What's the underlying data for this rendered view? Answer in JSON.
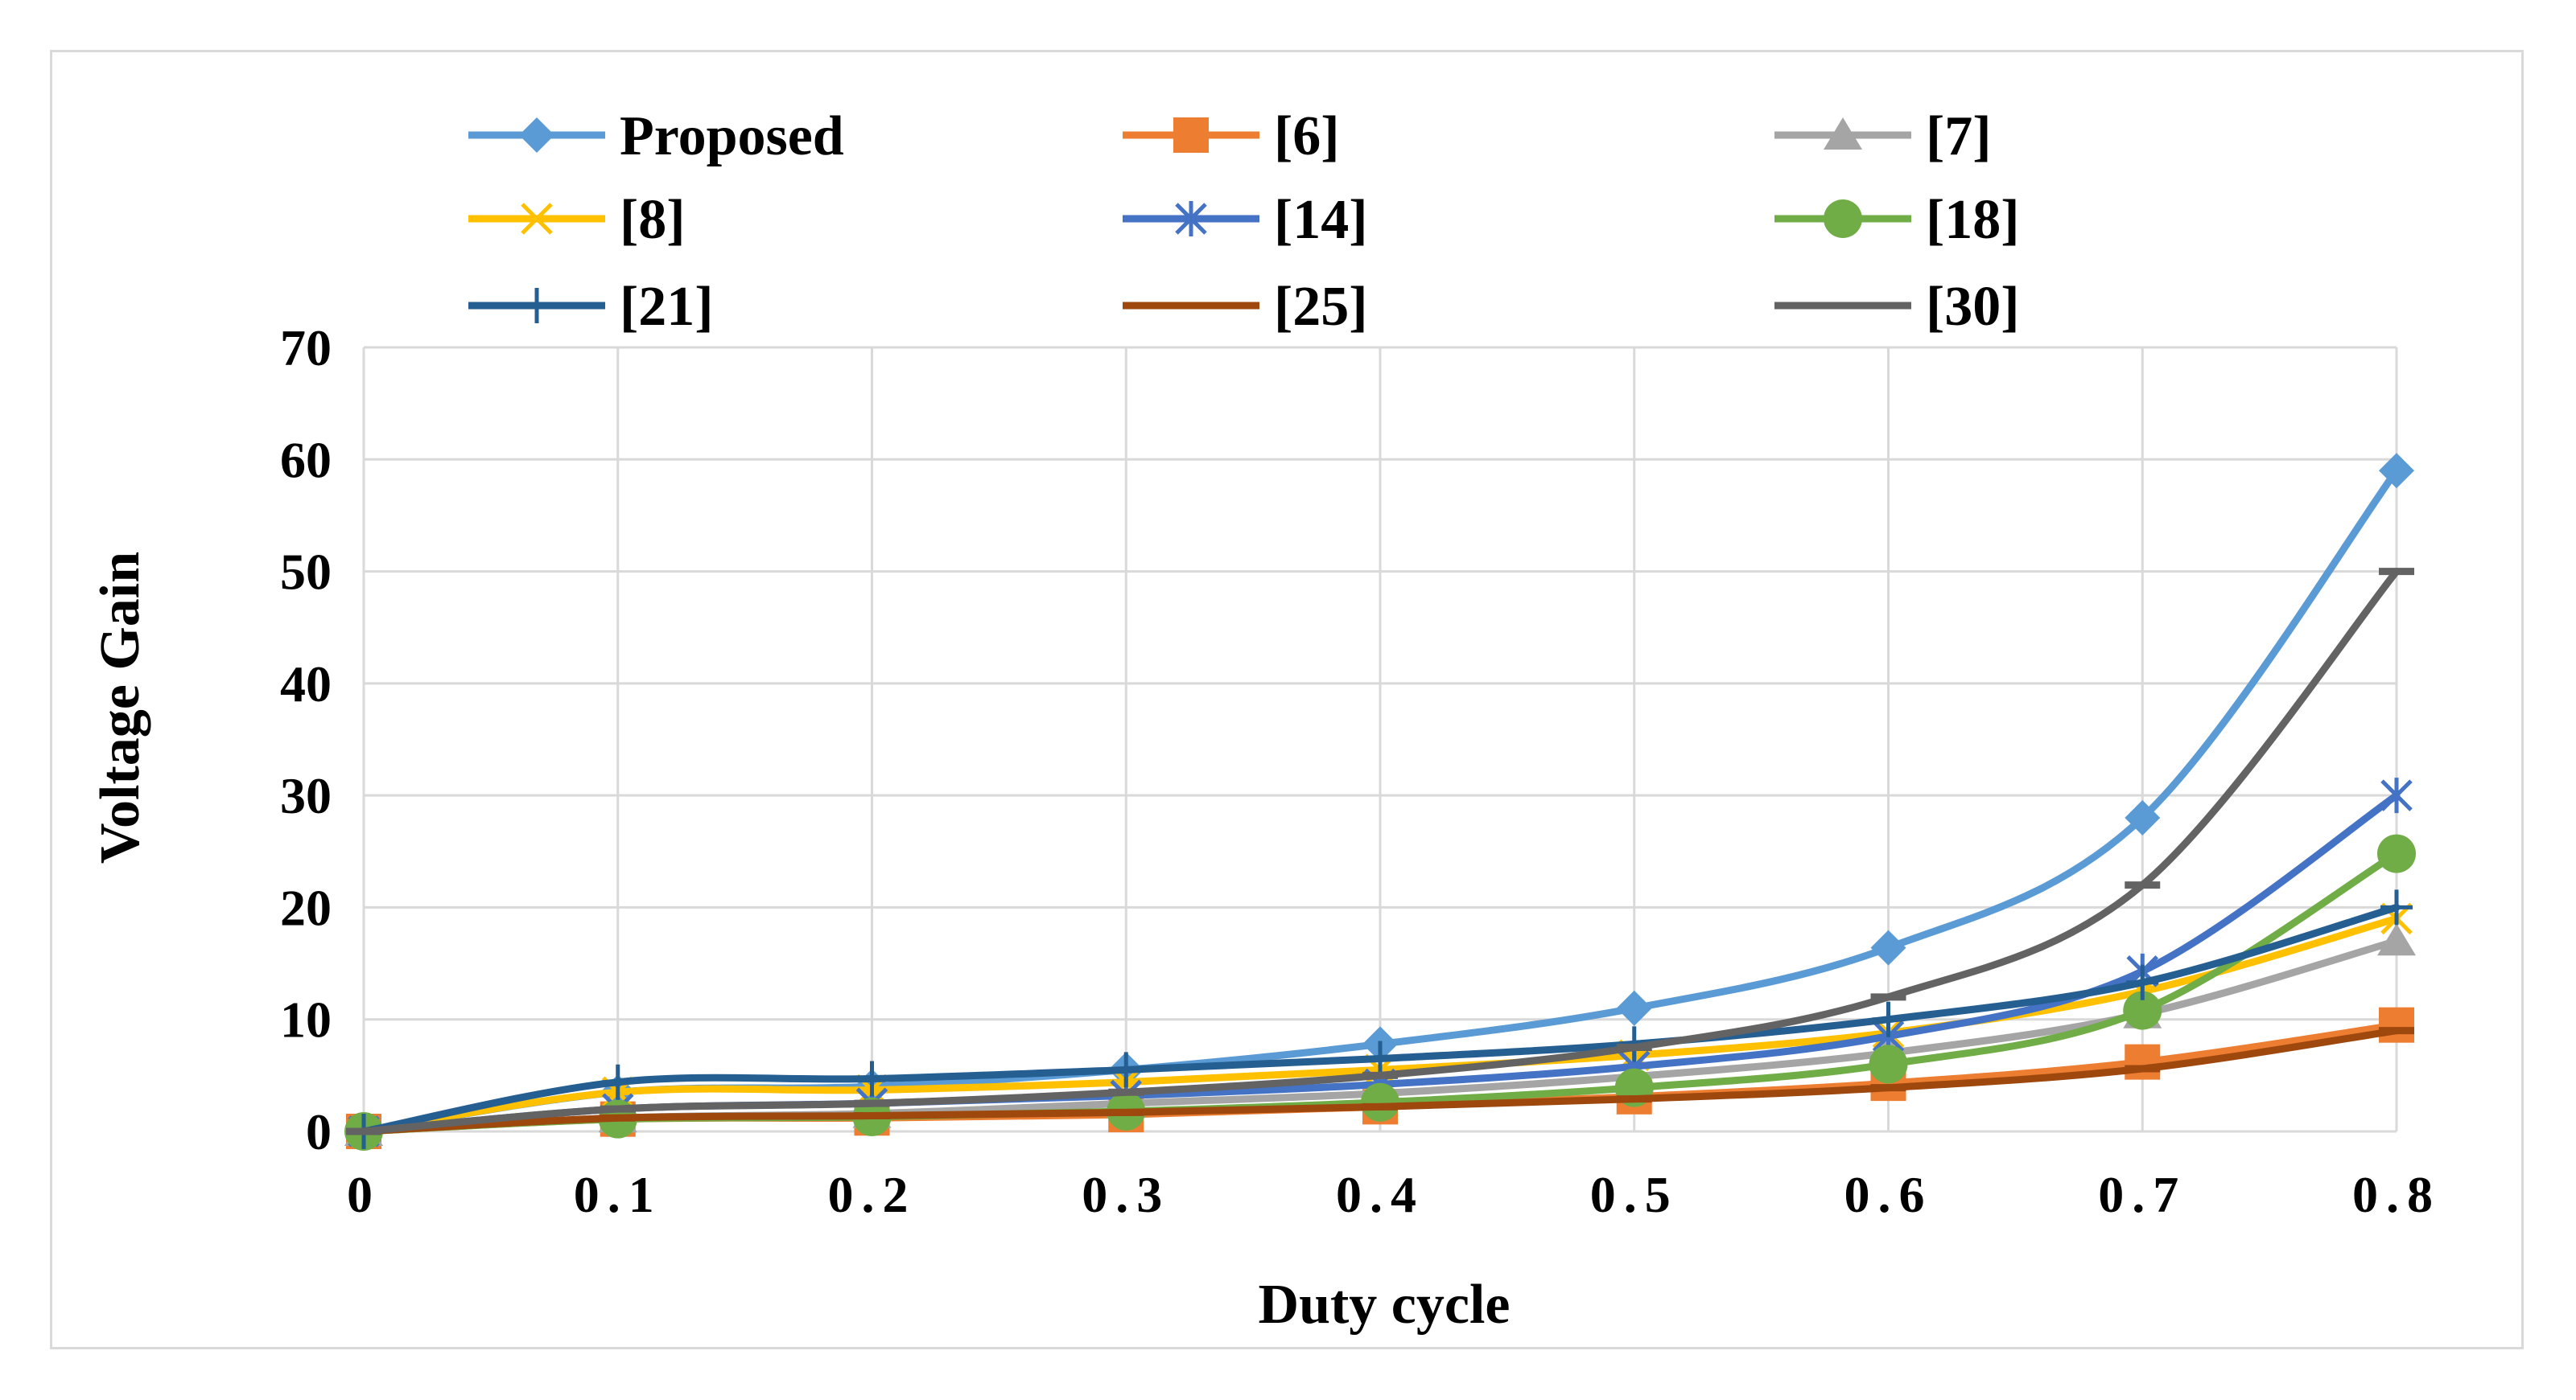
{
  "chart_data": {
    "type": "line",
    "title": "",
    "xlabel": "Duty cycle",
    "ylabel": "Voltage Gain",
    "x": [
      0,
      0.1,
      0.2,
      0.3,
      0.4,
      0.5,
      0.6,
      0.7,
      0.8
    ],
    "x_tick_labels": [
      "0",
      "0.1",
      "0.2",
      "0.3",
      "0.4",
      "0.5",
      "0.6",
      "0.7",
      "0.8"
    ],
    "ylim": [
      0,
      70
    ],
    "y_ticks": [
      0,
      10,
      20,
      30,
      40,
      50,
      60,
      70
    ],
    "grid": true,
    "legend_position": "top",
    "series": [
      {
        "name": "Proposed",
        "color": "#5b9bd5",
        "marker": "diamond",
        "values": [
          0,
          3.5,
          4.0,
          5.5,
          7.8,
          11.0,
          16.4,
          28.0,
          59.0
        ]
      },
      {
        "name": "[6]",
        "color": "#ed7d31",
        "marker": "square",
        "values": [
          0,
          1.1,
          1.2,
          1.5,
          2.2,
          3.1,
          4.3,
          6.2,
          9.5
        ]
      },
      {
        "name": "[7]",
        "color": "#a5a5a5",
        "marker": "triangle",
        "values": [
          0,
          1.2,
          1.6,
          2.5,
          3.4,
          4.9,
          7.0,
          10.5,
          17.0
        ]
      },
      {
        "name": "[8]",
        "color": "#ffc000",
        "marker": "x",
        "values": [
          0,
          3.5,
          3.7,
          4.4,
          5.5,
          6.8,
          8.8,
          12.5,
          19.0
        ]
      },
      {
        "name": "[14]",
        "color": "#4472c4",
        "marker": "asterisk",
        "values": [
          0,
          2.0,
          2.5,
          3.2,
          4.2,
          5.8,
          8.5,
          14.3,
          30.0
        ]
      },
      {
        "name": "[18]",
        "color": "#70ad47",
        "marker": "circle",
        "values": [
          0,
          1.1,
          1.3,
          1.8,
          2.6,
          3.9,
          6.0,
          10.8,
          24.8
        ]
      },
      {
        "name": "[21]",
        "color": "#255e91",
        "marker": "plus",
        "values": [
          0,
          4.4,
          4.7,
          5.5,
          6.5,
          7.8,
          10.0,
          13.3,
          20.0
        ]
      },
      {
        "name": "[25]",
        "color": "#9e480e",
        "marker": "dash",
        "values": [
          0,
          1.2,
          1.4,
          1.7,
          2.2,
          2.9,
          3.9,
          5.6,
          9.0
        ]
      },
      {
        "name": "[30]",
        "color": "#636363",
        "marker": "dash",
        "values": [
          0,
          2.0,
          2.5,
          3.5,
          5.0,
          7.5,
          12.0,
          22.0,
          50.0
        ]
      }
    ]
  }
}
